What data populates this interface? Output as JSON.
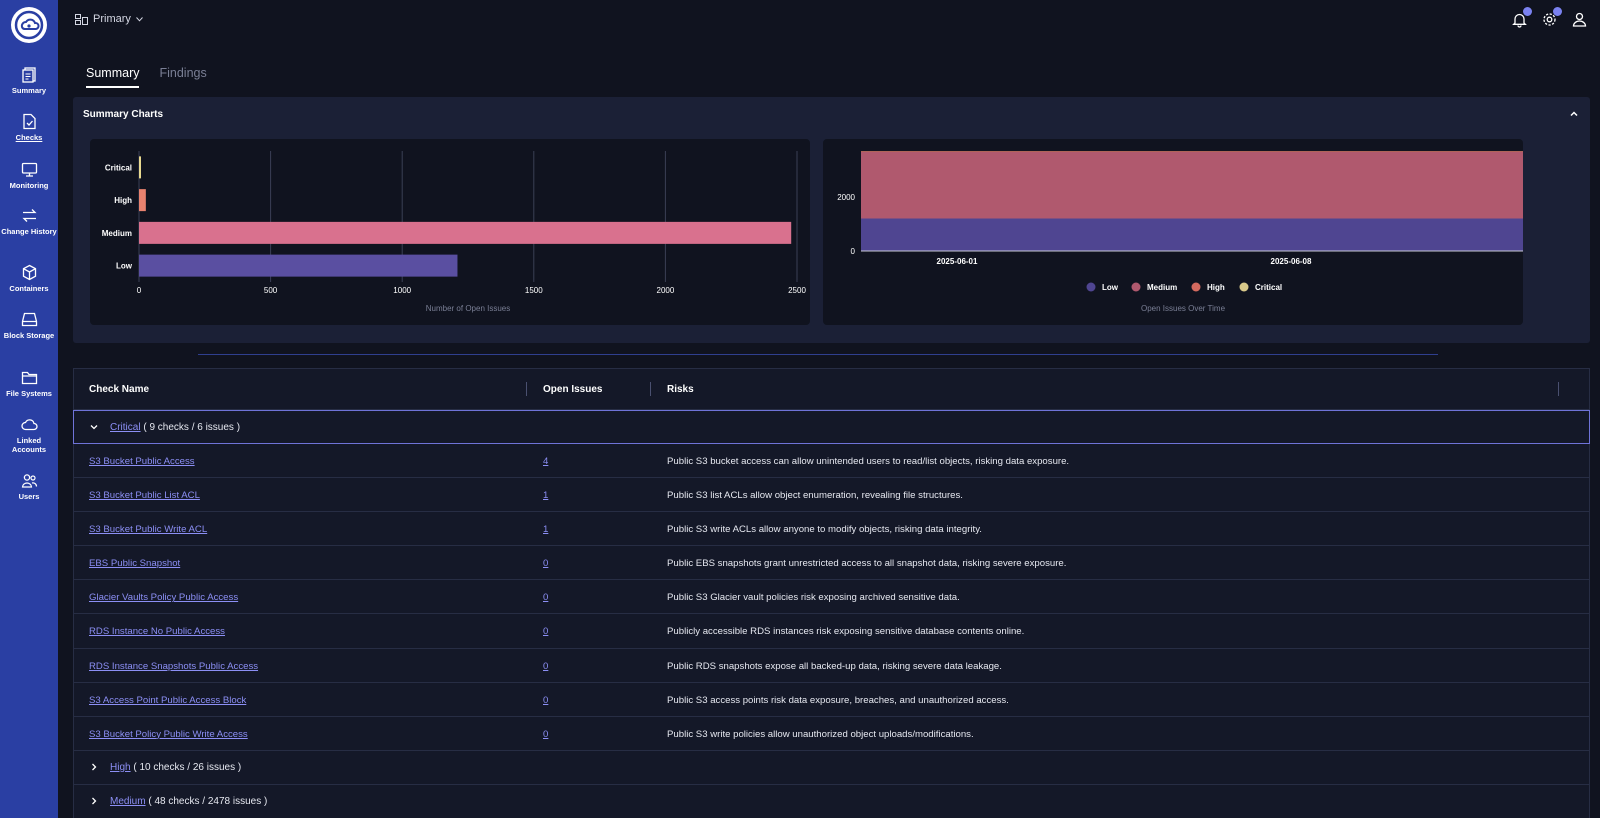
{
  "sidebar": {
    "items": [
      {
        "label": "Summary",
        "icon": "summary-icon"
      },
      {
        "label": "Checks",
        "icon": "checks-icon",
        "active": true
      },
      {
        "label": "Monitoring",
        "icon": "monitor-icon"
      },
      {
        "label": "Change History",
        "icon": "swap-icon"
      },
      {
        "label": "Containers",
        "icon": "cube-icon"
      },
      {
        "label": "Block Storage",
        "icon": "drive-icon"
      },
      {
        "label": "File Systems",
        "icon": "folder-icon"
      },
      {
        "label": "Linked Accounts",
        "icon": "cloud-icon"
      },
      {
        "label": "Users",
        "icon": "users-icon"
      }
    ]
  },
  "topbar": {
    "workspace": "Primary"
  },
  "tabs": [
    {
      "label": "Summary",
      "active": true
    },
    {
      "label": "Findings",
      "active": false
    }
  ],
  "panel": {
    "title": "Summary Charts"
  },
  "chart_data": [
    {
      "type": "bar",
      "orientation": "horizontal",
      "categories": [
        "Critical",
        "High",
        "Medium",
        "Low"
      ],
      "values": [
        6,
        26,
        2478,
        1210
      ],
      "colors": [
        "#e8d990",
        "#e8826f",
        "#d9718e",
        "#5a4fa1"
      ],
      "xlabel": "Number of Open Issues",
      "xticks": [
        0,
        500,
        1000,
        1500,
        2000,
        2500
      ],
      "xlim": [
        0,
        2500
      ],
      "grid": true
    },
    {
      "type": "area",
      "stacked": true,
      "x": [
        "2025-06-01",
        "2025-06-08"
      ],
      "series": [
        {
          "name": "Low",
          "values": [
            1210,
            1210
          ],
          "color": "#4f4591"
        },
        {
          "name": "Medium",
          "values": [
            2478,
            2478
          ],
          "color": "#b0596e"
        },
        {
          "name": "High",
          "values": [
            26,
            26
          ],
          "color": "#d46a5f"
        },
        {
          "name": "Critical",
          "values": [
            6,
            6
          ],
          "color": "#d9c98a"
        }
      ],
      "yticks": [
        0,
        2000
      ],
      "ylim": [
        0,
        3720
      ],
      "xlabel": "Open Issues Over Time",
      "legend": "bottom"
    }
  ],
  "table": {
    "headers": {
      "name": "Check Name",
      "issues": "Open Issues",
      "risks": "Risks"
    },
    "groups": [
      {
        "label": "Critical",
        "summary": "( 9 checks / 6 issues )",
        "expanded": true
      },
      {
        "label": "High",
        "summary": "( 10 checks / 26 issues )",
        "expanded": false
      },
      {
        "label": "Medium",
        "summary": "( 48 checks / 2478 issues )",
        "expanded": false
      }
    ],
    "rows": [
      {
        "name": "S3 Bucket Public Access",
        "issues": "4",
        "risk": "Public S3 bucket access can allow unintended users to read/list objects, risking data exposure."
      },
      {
        "name": "S3 Bucket Public List ACL",
        "issues": "1",
        "risk": "Public S3 list ACLs allow object enumeration, revealing file structures."
      },
      {
        "name": "S3 Bucket Public Write ACL",
        "issues": "1",
        "risk": "Public S3 write ACLs allow anyone to modify objects, risking data integrity."
      },
      {
        "name": "EBS Public Snapshot",
        "issues": "0",
        "risk": "Public EBS snapshots grant unrestricted access to all snapshot data, risking severe exposure."
      },
      {
        "name": "Glacier Vaults Policy Public Access",
        "issues": "0",
        "risk": "Public S3 Glacier vault policies risk exposing archived sensitive data."
      },
      {
        "name": "RDS Instance No Public Access",
        "issues": "0",
        "risk": "Publicly accessible RDS instances risk exposing sensitive database contents online."
      },
      {
        "name": "RDS Instance Snapshots Public Access",
        "issues": "0",
        "risk": "Public RDS snapshots expose all backed-up data, risking severe data leakage."
      },
      {
        "name": "S3 Access Point Public Access Block",
        "issues": "0",
        "risk": "Public S3 access points risk data exposure, breaches, and unauthorized access."
      },
      {
        "name": "S3 Bucket Policy Public Write Access",
        "issues": "0",
        "risk": "Public S3 write policies allow unauthorized object uploads/modifications."
      }
    ]
  }
}
